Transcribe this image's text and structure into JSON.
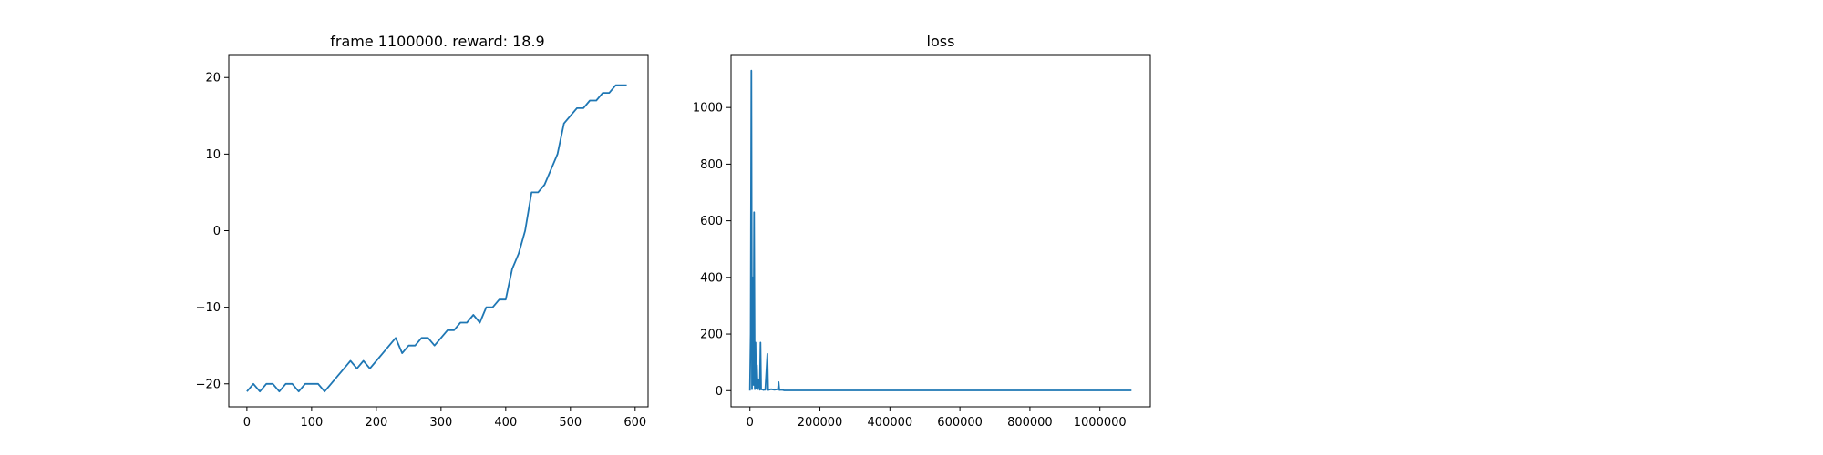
{
  "chart_data": [
    {
      "type": "line",
      "title": "frame 1100000. reward: 18.9",
      "xlabel": "",
      "ylabel": "",
      "xlim": [
        -28,
        620
      ],
      "ylim": [
        -23,
        23
      ],
      "xticks": [
        0,
        100,
        200,
        300,
        400,
        500,
        600
      ],
      "yticks": [
        -20,
        -10,
        0,
        10,
        20
      ],
      "xtick_labels": [
        "0",
        "100",
        "200",
        "300",
        "400",
        "500",
        "600"
      ],
      "ytick_labels": [
        "−20",
        "−10",
        "0",
        "10",
        "20"
      ],
      "grid": false,
      "color": "#1f77b4",
      "series": [
        {
          "x": [
            0,
            10,
            20,
            30,
            40,
            50,
            60,
            70,
            80,
            90,
            100,
            110,
            120,
            130,
            140,
            150,
            160,
            170,
            180,
            190,
            200,
            210,
            220,
            230,
            240,
            250,
            260,
            270,
            280,
            290,
            300,
            310,
            320,
            330,
            340,
            350,
            360,
            370,
            380,
            390,
            400,
            410,
            420,
            430,
            440,
            450,
            460,
            470,
            480,
            490,
            500,
            510,
            520,
            530,
            540,
            550,
            560,
            570,
            580,
            587
          ],
          "y": [
            -21,
            -20,
            -21,
            -20,
            -20,
            -21,
            -20,
            -20,
            -21,
            -20,
            -20,
            -20,
            -21,
            -20,
            -19,
            -18,
            -17,
            -18,
            -17,
            -18,
            -17,
            -16,
            -15,
            -14,
            -16,
            -15,
            -15,
            -14,
            -14,
            -15,
            -14,
            -13,
            -13,
            -12,
            -12,
            -11,
            -12,
            -10,
            -10,
            -9,
            -9,
            -5,
            -3,
            0,
            5,
            5,
            6,
            8,
            10,
            14,
            15,
            16,
            16,
            17,
            17,
            18,
            18,
            19,
            19,
            19
          ]
        }
      ]
    },
    {
      "type": "line",
      "title": "loss",
      "xlabel": "",
      "ylabel": "",
      "xlim": [
        -54000,
        1144000
      ],
      "ylim": [
        -57,
        1187
      ],
      "xticks": [
        0,
        200000,
        400000,
        600000,
        800000,
        1000000
      ],
      "yticks": [
        0,
        200,
        400,
        600,
        800,
        1000
      ],
      "xtick_labels": [
        "0",
        "200000",
        "400000",
        "600000",
        "800000",
        "1000000"
      ],
      "ytick_labels": [
        "0",
        "200",
        "400",
        "600",
        "800",
        "1000"
      ],
      "grid": false,
      "color": "#1f77b4",
      "series": [
        {
          "x": [
            0,
            2000,
            4000,
            6000,
            8000,
            10000,
            12000,
            14000,
            16000,
            18000,
            20000,
            22000,
            24000,
            28000,
            30000,
            32000,
            36000,
            38000,
            42000,
            44000,
            50000,
            52000,
            60000,
            70000,
            80000,
            82000,
            84000,
            90000,
            95000,
            97000,
            99000,
            110000,
            150000,
            200000,
            300000,
            400000,
            500000,
            600000,
            700000,
            800000,
            900000,
            1000000,
            1090000
          ],
          "y": [
            0,
            200,
            1130,
            5,
            400,
            20,
            630,
            5,
            170,
            10,
            90,
            5,
            40,
            3,
            170,
            4,
            4,
            2,
            3,
            3,
            130,
            2,
            5,
            3,
            5,
            30,
            2,
            3,
            2,
            1,
            1,
            1,
            1,
            1,
            1,
            1,
            1,
            1,
            1,
            1,
            1,
            1,
            1
          ]
        }
      ]
    }
  ]
}
